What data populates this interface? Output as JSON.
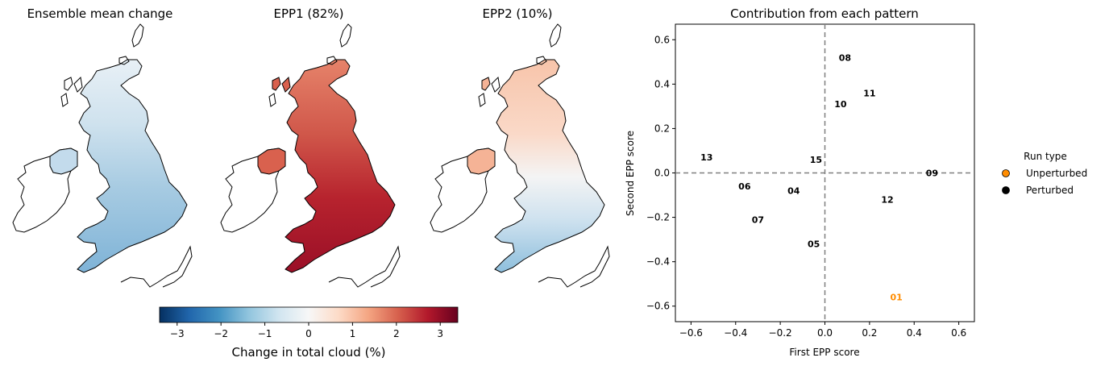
{
  "maps": [
    {
      "title": "Ensemble mean change",
      "mode": "mean"
    },
    {
      "title": "EPP1 (82%)",
      "mode": "epp1"
    },
    {
      "title": "EPP2 (10%)",
      "mode": "epp2"
    }
  ],
  "colorbar": {
    "label": "Change in total cloud (%)",
    "range": [
      -3.4,
      3.4
    ],
    "ticks": [
      -3,
      -2,
      -1,
      0,
      1,
      2,
      3
    ],
    "tick_labels": [
      "−3",
      "−2",
      "−1",
      "0",
      "1",
      "2",
      "3"
    ],
    "colormap": "RdBu_r"
  },
  "chart_data": {
    "type": "scatter",
    "title": "Contribution from each pattern",
    "xlabel": "First EPP score",
    "ylabel": "Second EPP score",
    "xlim": [
      -0.67,
      0.67
    ],
    "ylim": [
      -0.67,
      0.67
    ],
    "xticks": [
      -0.6,
      -0.4,
      -0.2,
      0.0,
      0.2,
      0.4,
      0.6
    ],
    "xtick_labels": [
      "−0.6",
      "−0.4",
      "−0.2",
      "0.0",
      "0.2",
      "0.4",
      "0.6"
    ],
    "yticks": [
      -0.6,
      -0.4,
      -0.2,
      0.0,
      0.2,
      0.4,
      0.6
    ],
    "ytick_labels": [
      "−0.6",
      "−0.4",
      "−0.2",
      "0.0",
      "0.2",
      "0.4",
      "0.6"
    ],
    "reference_lines": {
      "x": 0,
      "y": 0,
      "style": "dashed",
      "color": "#808080"
    },
    "points": [
      {
        "label": "01",
        "x": 0.32,
        "y": -0.56,
        "type": "Unperturbed"
      },
      {
        "label": "04",
        "x": -0.14,
        "y": -0.08,
        "type": "Perturbed"
      },
      {
        "label": "05",
        "x": -0.05,
        "y": -0.32,
        "type": "Perturbed"
      },
      {
        "label": "06",
        "x": -0.36,
        "y": -0.06,
        "type": "Perturbed"
      },
      {
        "label": "07",
        "x": -0.3,
        "y": -0.21,
        "type": "Perturbed"
      },
      {
        "label": "08",
        "x": 0.09,
        "y": 0.52,
        "type": "Perturbed"
      },
      {
        "label": "09",
        "x": 0.48,
        "y": 0.0,
        "type": "Perturbed"
      },
      {
        "label": "10",
        "x": 0.07,
        "y": 0.31,
        "type": "Perturbed"
      },
      {
        "label": "11",
        "x": 0.2,
        "y": 0.36,
        "type": "Perturbed"
      },
      {
        "label": "12",
        "x": 0.28,
        "y": -0.12,
        "type": "Perturbed"
      },
      {
        "label": "13",
        "x": -0.53,
        "y": 0.07,
        "type": "Perturbed"
      },
      {
        "label": "15",
        "x": -0.04,
        "y": 0.06,
        "type": "Perturbed"
      }
    ],
    "legend": {
      "title": "Run type",
      "placement": "outside-right",
      "entries": [
        {
          "label": "Unperturbed",
          "color": "#ff8c00"
        },
        {
          "label": "Perturbed",
          "color": "#000000"
        }
      ]
    },
    "colors": {
      "Unperturbed": "#ff8c00",
      "Perturbed": "#000000"
    }
  }
}
